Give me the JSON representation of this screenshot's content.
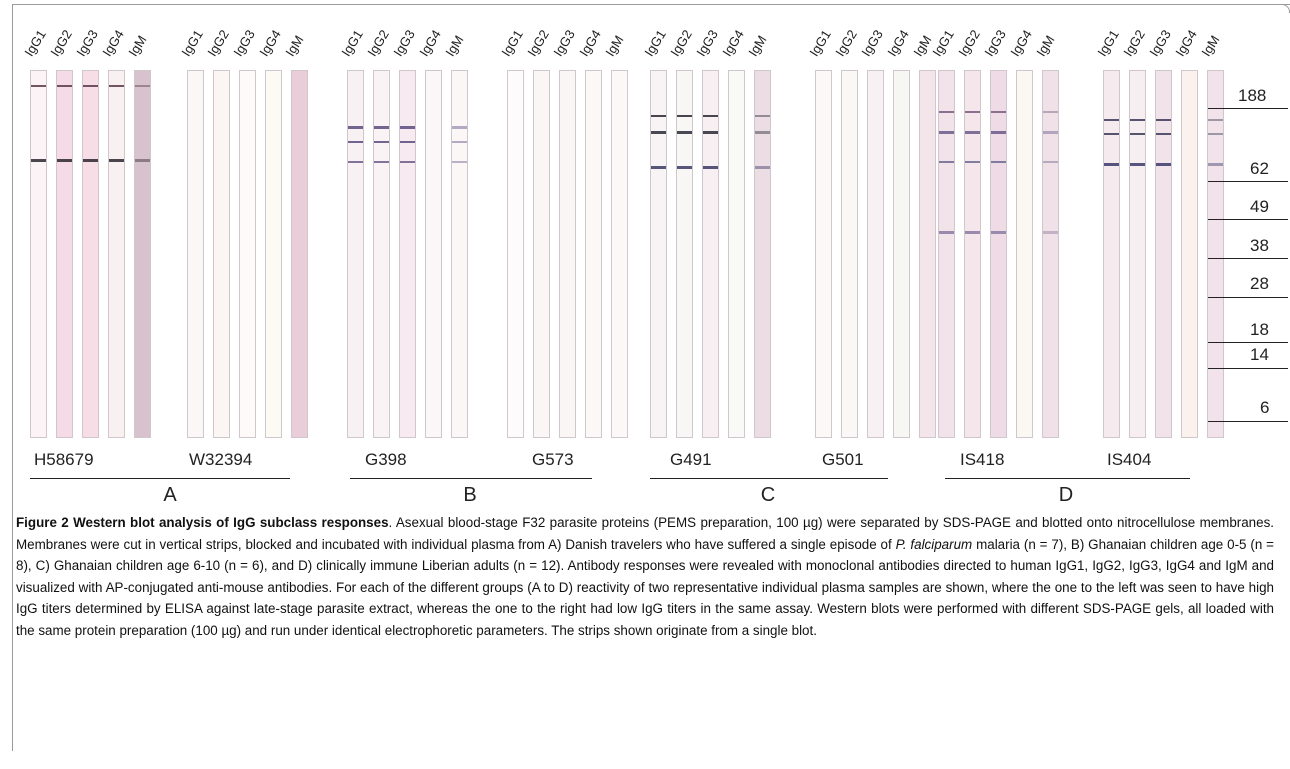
{
  "figure": {
    "lane_labels": [
      "IgG1",
      "IgG2",
      "IgG3",
      "IgG4",
      "IgM"
    ],
    "samples": [
      {
        "name": "H58679",
        "group": "A"
      },
      {
        "name": "W32394",
        "group": "A"
      },
      {
        "name": "G398",
        "group": "B"
      },
      {
        "name": "G573",
        "group": "B"
      },
      {
        "name": "G491",
        "group": "C"
      },
      {
        "name": "G501",
        "group": "C"
      },
      {
        "name": "IS418",
        "group": "D"
      },
      {
        "name": "IS404",
        "group": "D"
      }
    ],
    "groups": [
      "A",
      "B",
      "C",
      "D"
    ],
    "markers": [
      "188",
      "62",
      "49",
      "38",
      "28",
      "18",
      "14",
      "6"
    ]
  },
  "caption": {
    "title": "Figure 2 Western blot analysis of IgG subclass responses",
    "p1": ". Asexual blood-stage F32 parasite proteins (PEMS preparation, 100 µg) were separated by SDS-PAGE and blotted onto nitrocellulose membranes. Membranes were cut in vertical strips, blocked and incubated with individual plasma from A) Danish travelers who have suffered a single episode of ",
    "species": "P. falciparum",
    "p2": " malaria (n = 7), B) Ghanaian children age 0-5 (n = 8), C) Ghanaian children age 6-10 (n = 6), and D) clinically immune Liberian adults (n = 12). Antibody responses were revealed with monoclonal antibodies directed to human IgG1, IgG2, IgG3, IgG4 and IgM and visualized with AP-conjugated anti-mouse antibodies. For each of the different groups (A to D) reactivity of two representative individual plasma samples are shown, where the one to the left was seen to have high IgG titers determined by ELISA against late-stage parasite extract, whereas the one to the right had low IgG titers in the same assay. Western blots were performed with different SDS-PAGE gels, all loaded with the same protein preparation (100 µg) and run under identical electrophoretic parameters. The strips shown originate from a single blot."
  }
}
